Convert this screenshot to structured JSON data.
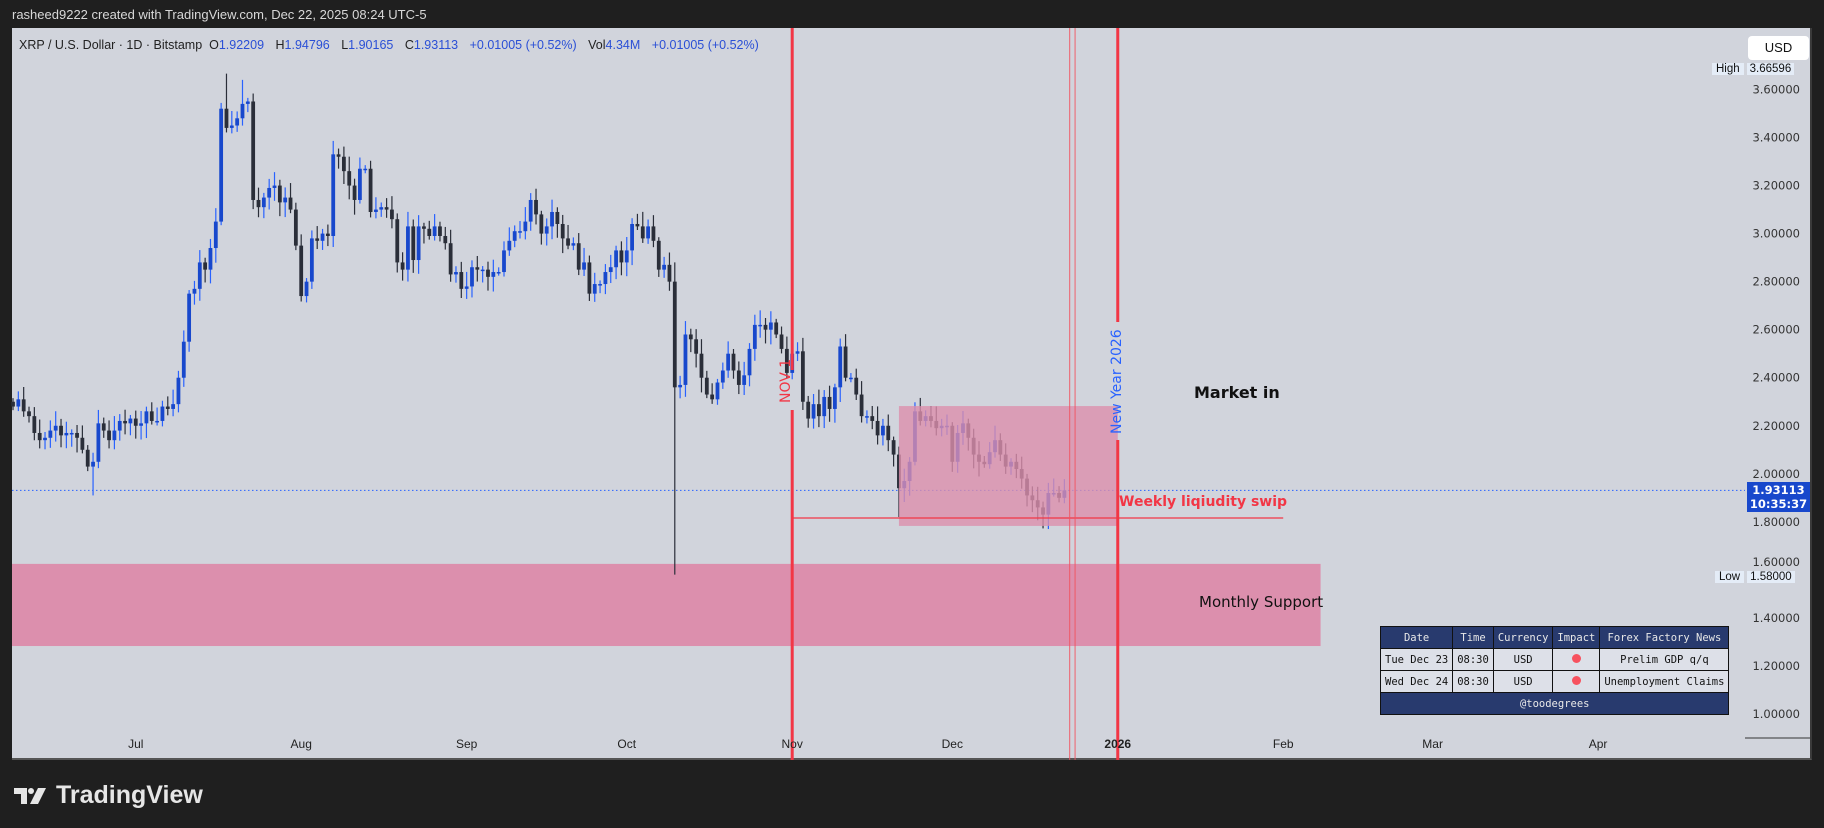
{
  "header": {
    "caption": "rasheed9222 created with TradingView.com, Dec 22, 2025 08:24 UTC-5"
  },
  "legend": {
    "symbol": "XRP / U.S. Dollar · 1D · Bitstamp",
    "o_label": "O",
    "o": "1.92209",
    "h_label": "H",
    "h": "1.94796",
    "l_label": "L",
    "l": "1.90165",
    "c_label": "C",
    "c": "1.93113",
    "change": "+0.01005 (+0.52%)",
    "vol_label": "Vol",
    "vol": "4.34M",
    "vol_change": "+0.01005 (+0.52%)"
  },
  "price_axis": {
    "currency": "USD",
    "high_label": "High",
    "high_value": "3.66596",
    "low_label": "Low",
    "low_value": "1.58000",
    "current_price": "1.93113",
    "countdown": "10:35:37",
    "ticks": [
      "1.00000",
      "1.20000",
      "1.40000",
      "1.60000",
      "1.80000",
      "2.00000",
      "2.20000",
      "2.40000",
      "2.60000",
      "2.80000",
      "3.00000",
      "3.20000",
      "3.40000",
      "3.60000"
    ]
  },
  "time_axis": {
    "labels": [
      {
        "text": "Jul",
        "date": "2025-07-01"
      },
      {
        "text": "Aug",
        "date": "2025-08-01"
      },
      {
        "text": "Sep",
        "date": "2025-09-01"
      },
      {
        "text": "Oct",
        "date": "2025-10-01"
      },
      {
        "text": "Nov",
        "date": "2025-11-01"
      },
      {
        "text": "Dec",
        "date": "2025-12-01"
      },
      {
        "text": "2026",
        "date": "2026-01-01",
        "bold": true
      },
      {
        "text": "Feb",
        "date": "2026-02-01"
      },
      {
        "text": "Mar",
        "date": "2026-03-01"
      },
      {
        "text": "Apr",
        "date": "2026-04-01"
      }
    ]
  },
  "annotations": {
    "market_in": "Market in",
    "weekly_sweep": "Weekly liqiudity swip",
    "monthly_support": "Monthly Support",
    "nov_label": "NOV 1",
    "new_year_label": "New Year 2026",
    "weekly_zone": {
      "from": "2025-11-21",
      "to": "2026-01-01",
      "top": 2.282,
      "bottom": 1.783,
      "color": "#dc8fad"
    },
    "monthly_zone": {
      "from": "2025-06-07",
      "to": "2026-02-08",
      "top": 1.625,
      "bottom": 1.283,
      "color": "#dc8fad"
    },
    "sweep_line": {
      "from": "2025-11-01",
      "to": "2026-02-01",
      "price": 1.816
    },
    "vlines": [
      {
        "date": "2025-11-01",
        "kind": "thick"
      },
      {
        "date": "2026-01-01",
        "kind": "thick"
      },
      {
        "date": "2025-12-23",
        "kind": "thin"
      },
      {
        "date": "2025-12-24",
        "kind": "thin"
      }
    ]
  },
  "news_table": {
    "headers": [
      "Date",
      "Time",
      "Currency",
      "Impact",
      "Forex Factory News"
    ],
    "rows": [
      {
        "date": "Tue Dec 23",
        "time": "08:30",
        "currency": "USD",
        "impact": "high",
        "news": "Prelim GDP q/q"
      },
      {
        "date": "Wed Dec 24",
        "time": "08:30",
        "currency": "USD",
        "impact": "high",
        "news": "Unemployment Claims"
      }
    ],
    "footer": "@toodegrees"
  },
  "logo": {
    "text": "TradingView"
  },
  "colors": {
    "up": "#1848cc",
    "up_wick": "#2962ff",
    "down": "#2a2e39",
    "line": "#f23645",
    "bg": "#d1d4dc",
    "current": "#1848cc"
  },
  "chart_data": {
    "type": "candlestick",
    "title": "XRP / U.S. Dollar · 1D · Bitstamp",
    "start_date": "2025-06-08",
    "ylim": [
      0.92,
      3.76
    ],
    "closes": [
      2.28,
      2.31,
      2.26,
      2.24,
      2.17,
      2.14,
      2.15,
      2.18,
      2.2,
      2.16,
      2.17,
      2.17,
      2.15,
      2.1,
      2.03,
      2.05,
      2.21,
      2.18,
      2.14,
      2.18,
      2.22,
      2.21,
      2.23,
      2.2,
      2.21,
      2.26,
      2.22,
      2.22,
      2.28,
      2.27,
      2.29,
      2.4,
      2.55,
      2.75,
      2.77,
      2.88,
      2.85,
      2.94,
      3.05,
      3.52,
      3.44,
      3.45,
      3.48,
      3.54,
      3.55,
      3.14,
      3.11,
      3.15,
      3.19,
      3.2,
      3.13,
      3.15,
      3.1,
      2.95,
      2.74,
      2.8,
      2.98,
      2.97,
      3.0,
      2.99,
      3.33,
      3.32,
      3.26,
      3.2,
      3.14,
      3.27,
      3.27,
      3.09,
      3.1,
      3.11,
      3.1,
      3.06,
      2.88,
      2.85,
      3.03,
      2.89,
      3.03,
      3.02,
      2.99,
      3.03,
      2.99,
      2.96,
      2.83,
      2.84,
      2.77,
      2.78,
      2.86,
      2.85,
      2.85,
      2.82,
      2.84,
      2.84,
      2.93,
      2.97,
      3.01,
      3.01,
      3.05,
      3.14,
      3.08,
      3.0,
      3.03,
      3.09,
      3.04,
      2.98,
      2.95,
      2.96,
      2.85,
      2.88,
      2.75,
      2.79,
      2.79,
      2.84,
      2.86,
      2.93,
      2.88,
      2.93,
      3.04,
      3.03,
      2.98,
      3.03,
      2.97,
      2.85,
      2.87,
      2.8,
      2.36,
      2.37,
      2.58,
      2.56,
      2.5,
      2.4,
      2.33,
      2.31,
      2.38,
      2.43,
      2.5,
      2.43,
      2.37,
      2.41,
      2.52,
      2.62,
      2.62,
      2.6,
      2.63,
      2.58,
      2.52,
      2.42,
      2.5,
      2.51,
      2.3,
      2.23,
      2.29,
      2.24,
      2.32,
      2.27,
      2.36,
      2.53,
      2.4,
      2.4,
      2.33,
      2.24,
      2.24,
      2.22,
      2.16,
      2.2,
      2.14,
      2.08,
      1.94,
      1.97,
      2.05,
      2.26,
      2.22,
      2.24,
      2.22,
      2.19,
      2.2,
      2.2,
      2.05,
      2.17,
      2.21,
      2.15,
      2.08,
      2.05,
      2.04,
      2.09,
      2.14,
      2.08,
      2.03,
      2.05,
      2.02,
      1.98,
      1.91,
      1.89,
      1.86,
      1.83,
      1.92,
      1.92,
      1.9,
      1.931
    ],
    "extremes": [
      {
        "date": "2025-06-23",
        "low": 1.91
      },
      {
        "date": "2025-07-18",
        "high": 3.666
      },
      {
        "date": "2025-07-21",
        "high": 3.64
      },
      {
        "date": "2025-10-10",
        "high": 2.88,
        "low": 1.58
      },
      {
        "date": "2025-11-21",
        "low": 1.82
      },
      {
        "date": "2025-12-19",
        "low": 1.77
      }
    ]
  }
}
